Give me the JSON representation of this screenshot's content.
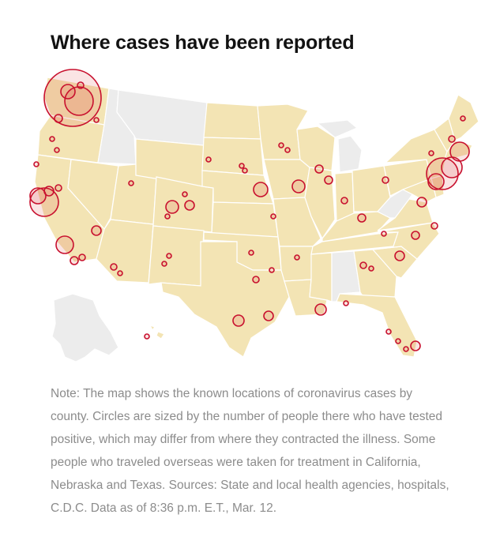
{
  "title": "Where cases have been reported",
  "note": "Note: The map shows the known locations of coronavirus cases by county. Circles are sized by the number of people there who have tested positive, which may differ from where they contracted the illness. Some people who traveled overseas were taken for treatment in California, Nebraska and Texas. Sources: State and local health agencies, hospitals, C.D.C. Data as of 8:36 p.m. E.T., Mar. 12.",
  "map": {
    "colors": {
      "state_with_cases": "#f3e4b4",
      "state_no_cases": "#ececec",
      "circle_stroke": "#c8102e"
    },
    "states_without_cases": [
      "Montana",
      "Idaho",
      "Michigan",
      "West Virginia",
      "Alabama",
      "Alaska"
    ]
  }
}
